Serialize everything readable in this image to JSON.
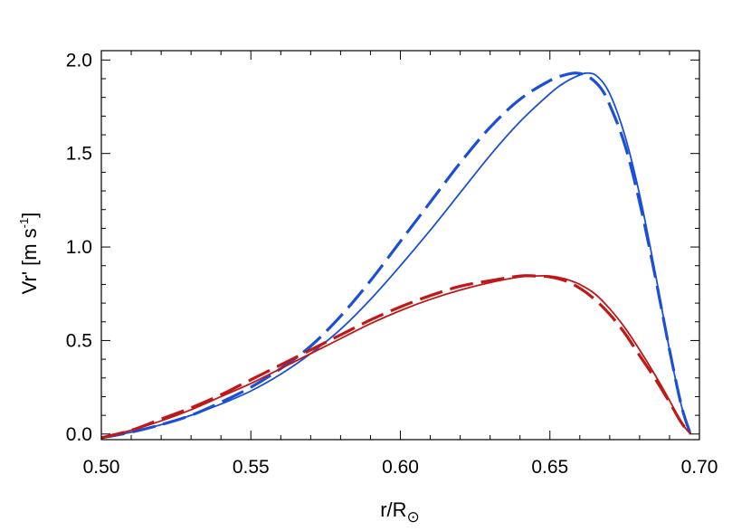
{
  "chart_data": {
    "type": "line",
    "xlabel": "r/R",
    "xlabel_subscript": "⊙",
    "ylabel": "Vr' [m s",
    "ylabel_exponent": "-1",
    "ylabel_close": "]",
    "xlim": [
      0.5,
      0.7
    ],
    "ylim": [
      -0.03,
      2.05
    ],
    "xticks": [
      0.5,
      0.55,
      0.6,
      0.65,
      0.7
    ],
    "xtick_labels": [
      "0.50",
      "0.55",
      "0.60",
      "0.65",
      "0.70"
    ],
    "yticks": [
      0.0,
      0.5,
      1.0,
      1.5,
      2.0
    ],
    "ytick_labels": [
      "0.0",
      "0.5",
      "1.0",
      "1.5",
      "2.0"
    ],
    "grid": false,
    "series": [
      {
        "color": "#1a4fd6",
        "style": "solid",
        "x": [
          0.5,
          0.51,
          0.52,
          0.53,
          0.54,
          0.55,
          0.56,
          0.57,
          0.58,
          0.59,
          0.6,
          0.61,
          0.62,
          0.63,
          0.64,
          0.65,
          0.655,
          0.66,
          0.663,
          0.666,
          0.67,
          0.675,
          0.68,
          0.685,
          0.69,
          0.694,
          0.697
        ],
        "y": [
          -0.02,
          0.01,
          0.05,
          0.1,
          0.16,
          0.23,
          0.32,
          0.43,
          0.56,
          0.72,
          0.9,
          1.09,
          1.29,
          1.49,
          1.67,
          1.82,
          1.88,
          1.92,
          1.93,
          1.91,
          1.82,
          1.6,
          1.28,
          0.88,
          0.45,
          0.15,
          0.0
        ]
      },
      {
        "color": "#1a4fd6",
        "style": "dashed",
        "x": [
          0.5,
          0.51,
          0.52,
          0.53,
          0.54,
          0.55,
          0.56,
          0.57,
          0.58,
          0.59,
          0.6,
          0.61,
          0.62,
          0.63,
          0.64,
          0.65,
          0.655,
          0.659,
          0.663,
          0.667,
          0.67,
          0.675,
          0.68,
          0.685,
          0.69,
          0.694,
          0.697
        ],
        "y": [
          -0.02,
          0.01,
          0.05,
          0.1,
          0.17,
          0.25,
          0.35,
          0.47,
          0.63,
          0.82,
          1.03,
          1.24,
          1.45,
          1.64,
          1.79,
          1.89,
          1.92,
          1.93,
          1.91,
          1.85,
          1.76,
          1.55,
          1.24,
          0.86,
          0.45,
          0.15,
          0.0
        ]
      },
      {
        "color": "#c01818",
        "style": "solid",
        "x": [
          0.5,
          0.51,
          0.52,
          0.53,
          0.54,
          0.55,
          0.56,
          0.57,
          0.58,
          0.59,
          0.6,
          0.61,
          0.62,
          0.63,
          0.64,
          0.645,
          0.65,
          0.655,
          0.66,
          0.665,
          0.67,
          0.675,
          0.68,
          0.685,
          0.69,
          0.694,
          0.697
        ],
        "y": [
          -0.02,
          0.02,
          0.07,
          0.13,
          0.2,
          0.27,
          0.35,
          0.43,
          0.51,
          0.59,
          0.66,
          0.72,
          0.77,
          0.81,
          0.84,
          0.845,
          0.845,
          0.83,
          0.8,
          0.75,
          0.67,
          0.57,
          0.45,
          0.32,
          0.18,
          0.06,
          0.0
        ]
      },
      {
        "color": "#c01818",
        "style": "dashed",
        "x": [
          0.5,
          0.51,
          0.52,
          0.53,
          0.54,
          0.55,
          0.56,
          0.57,
          0.58,
          0.59,
          0.6,
          0.61,
          0.62,
          0.63,
          0.64,
          0.645,
          0.65,
          0.655,
          0.66,
          0.665,
          0.67,
          0.675,
          0.68,
          0.685,
          0.69,
          0.694,
          0.697
        ],
        "y": [
          -0.02,
          0.02,
          0.08,
          0.14,
          0.21,
          0.29,
          0.37,
          0.45,
          0.53,
          0.61,
          0.68,
          0.74,
          0.79,
          0.82,
          0.845,
          0.845,
          0.84,
          0.82,
          0.78,
          0.72,
          0.64,
          0.54,
          0.42,
          0.3,
          0.17,
          0.06,
          0.0
        ]
      }
    ]
  }
}
